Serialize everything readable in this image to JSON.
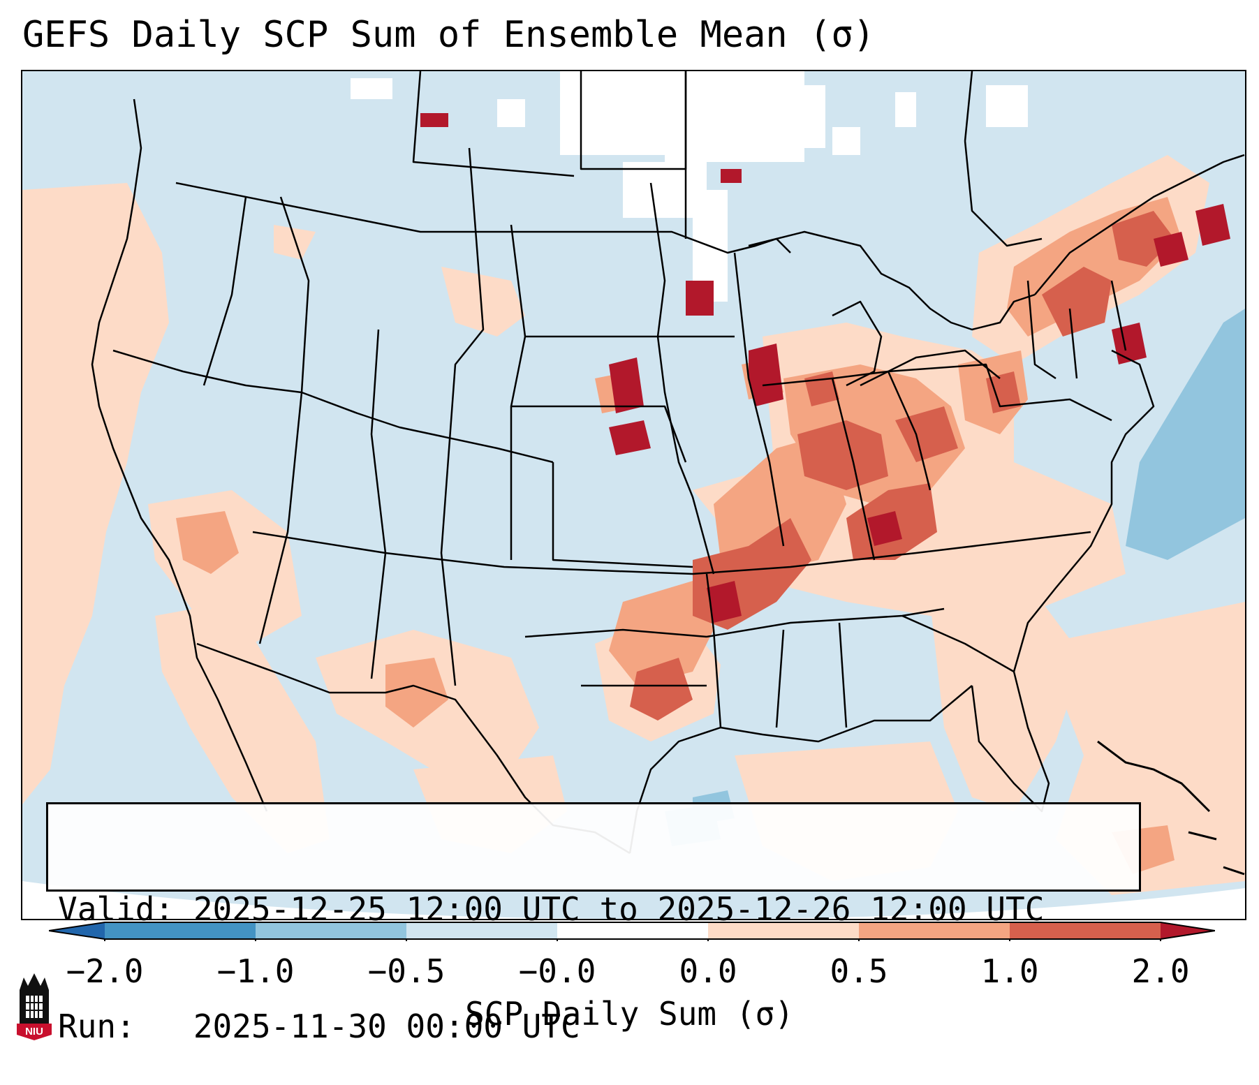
{
  "title": "GEFS Daily SCP Sum of Ensemble Mean (σ)",
  "info": {
    "valid_line": "Valid: 2025-12-25 12:00 UTC to 2025-12-26 12:00 UTC",
    "run_line": "Run:   2025-11-30 00:00 UTC"
  },
  "colorbar": {
    "label": "SCP Daily Sum (σ)",
    "ticks": [
      "−2.0",
      "−1.0",
      "−0.5",
      "−0.0",
      "0.0",
      "0.5",
      "1.0",
      "2.0"
    ],
    "segments": [
      {
        "range": "< -2.0",
        "color": "#2166ac"
      },
      {
        "range": "-2.0 to -1.0",
        "color": "#4393c3"
      },
      {
        "range": "-1.0 to -0.5",
        "color": "#92c5de"
      },
      {
        "range": "-0.5 to -0.0",
        "color": "#d1e5f0"
      },
      {
        "range": "-0.0 to 0.0",
        "color": "#ffffff"
      },
      {
        "range": "0.0 to 0.5",
        "color": "#fddbc7"
      },
      {
        "range": "0.5 to 1.0",
        "color": "#f4a582"
      },
      {
        "range": "1.0 to 2.0",
        "color": "#d6604d"
      },
      {
        "range": "> 2.0",
        "color": "#b2182b"
      }
    ]
  },
  "logo": {
    "text": "NIU",
    "color": "#c8102e"
  },
  "chart_data": {
    "type": "heatmap",
    "title": "GEFS Daily SCP Sum of Ensemble Mean (σ)",
    "variable": "SCP Daily Sum (σ)",
    "levels": [
      -2.0,
      -1.0,
      -0.5,
      -0.0,
      0.0,
      0.5,
      1.0,
      2.0
    ],
    "domain": "Contiguous United States",
    "regions": [
      {
        "name": "Ohio and Tennessee Valleys",
        "category": "1.0 to 2.0 and > 2.0"
      },
      {
        "name": "Upper Midwest (MN/WI/IA)",
        "category": "> 2.0"
      },
      {
        "name": "Northeast / New England",
        "category": "1.0 to 2.0 and > 2.0"
      },
      {
        "name": "Southern Plains (OK/TX)",
        "category": "0.5 to 1.0 and 1.0 to 2.0"
      },
      {
        "name": "Southwest (NM/AZ)",
        "category": "0.0 to 2.0"
      },
      {
        "name": "Western Atlantic",
        "category": "-1.0 to -0.5"
      },
      {
        "name": "Gulf of Mexico (west-central)",
        "category": "-1.0 to -0.5"
      },
      {
        "name": "Southern Canada",
        "category": "-0.0 to 0.0"
      }
    ]
  }
}
